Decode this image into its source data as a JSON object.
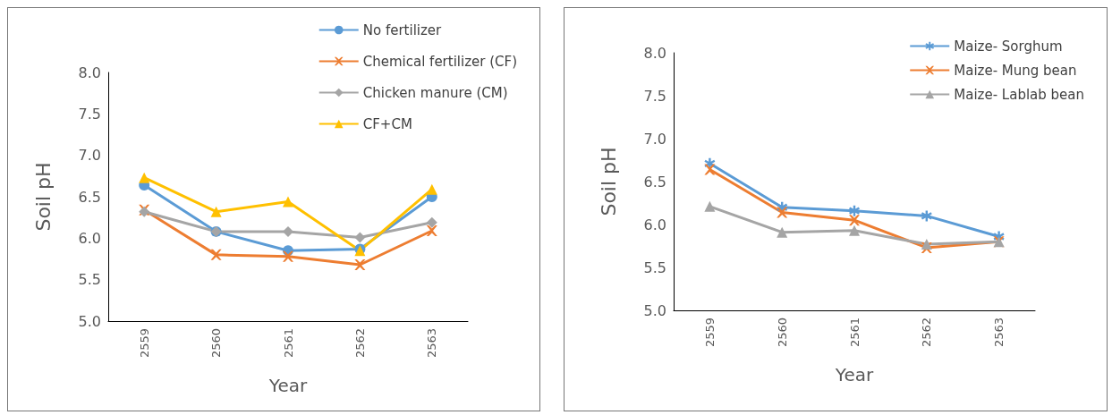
{
  "chart_data": [
    {
      "type": "line",
      "xlabel": "Year",
      "ylabel": "Soil pH",
      "categories": [
        "2559",
        "2560",
        "2561",
        "2562",
        "2563"
      ],
      "ylim": [
        5,
        8
      ],
      "yticks": [
        {
          "value": 5,
          "label": "5.0"
        },
        {
          "value": 5.5,
          "label": "5.5"
        },
        {
          "value": 6,
          "label": "6.0"
        },
        {
          "value": 6.5,
          "label": "6.5"
        },
        {
          "value": 7,
          "label": "7.0"
        },
        {
          "value": 7.5,
          "label": "7.5"
        },
        {
          "value": 8,
          "label": "8.0"
        }
      ],
      "grid": false,
      "legend": "top right",
      "line_style": "solid",
      "series": [
        {
          "name": "No fertilizer",
          "color": "#5b9bd5",
          "marker": "circle",
          "values": [
            6.64,
            6.08,
            5.85,
            5.87,
            6.5
          ]
        },
        {
          "name": "Chemical fertilizer (CF)",
          "color": "#ed7d31",
          "marker": "cross",
          "values": [
            6.34,
            5.8,
            5.78,
            5.68,
            6.09
          ]
        },
        {
          "name": "Chicken manure (CM)",
          "color": "#a5a5a5",
          "marker": "diamond",
          "values": [
            6.32,
            6.08,
            6.08,
            6.01,
            6.19
          ]
        },
        {
          "name": "CF+CM",
          "color": "#ffc000",
          "marker": "triangle",
          "values": [
            6.73,
            6.32,
            6.44,
            5.85,
            6.59
          ]
        }
      ]
    },
    {
      "type": "line",
      "xlabel": "Year",
      "ylabel": "Soil pH",
      "categories": [
        "2559",
        "2560",
        "2561",
        "2562",
        "2563"
      ],
      "ylim": [
        5,
        8
      ],
      "yticks": [
        {
          "value": 5,
          "label": "5.0"
        },
        {
          "value": 5.5,
          "label": "5.5"
        },
        {
          "value": 6,
          "label": "6.0"
        },
        {
          "value": 6.5,
          "label": "6.5"
        },
        {
          "value": 7,
          "label": "7.0"
        },
        {
          "value": 7.5,
          "label": "7.5"
        },
        {
          "value": 8,
          "label": "8.0"
        }
      ],
      "grid": false,
      "legend": "top right",
      "line_style": "solid",
      "series": [
        {
          "name": "Maize- Sorghum",
          "color": "#5b9bd5",
          "marker": "star",
          "values": [
            6.71,
            6.2,
            6.16,
            6.1,
            5.86
          ]
        },
        {
          "name": "Maize- Mung bean",
          "color": "#ed7d31",
          "marker": "cross",
          "values": [
            6.64,
            6.14,
            6.05,
            5.73,
            5.8
          ]
        },
        {
          "name": "Maize- Lablab bean",
          "color": "#a5a5a5",
          "marker": "triangle",
          "values": [
            6.21,
            5.91,
            5.93,
            5.77,
            5.8
          ]
        }
      ]
    }
  ]
}
